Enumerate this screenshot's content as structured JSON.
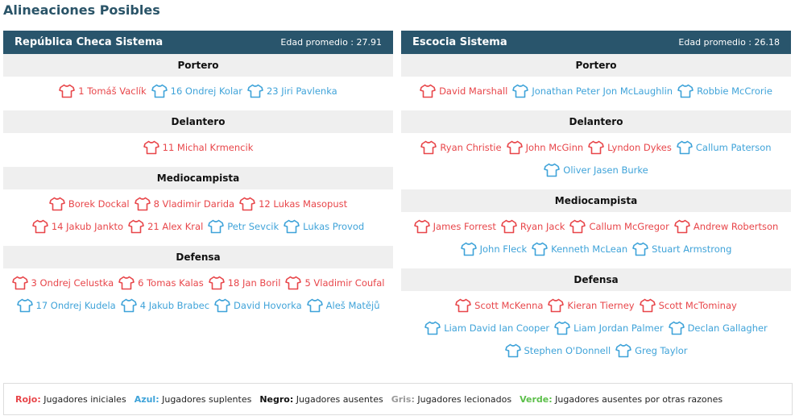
{
  "page_title": "Alineaciones Posibles",
  "colors": {
    "red": "#e8464a",
    "blue": "#3fa3d9",
    "header_bg": "#29556c",
    "section_bg": "#efefef"
  },
  "shirt_icon": "shirt-icon",
  "teams": [
    {
      "name": "República Checa Sistema",
      "age": "Edad promedio : 27.91",
      "sections": [
        {
          "title": "Portero",
          "rows": [
            [
              {
                "label": "1 Tomáš Vaclík",
                "color": "red"
              },
              {
                "label": "16 Ondrej Kolar",
                "color": "blue"
              },
              {
                "label": "23 Jiri Pavlenka",
                "color": "blue"
              }
            ]
          ]
        },
        {
          "title": "Delantero",
          "rows": [
            [
              {
                "label": "11 Michal Krmencik",
                "color": "red"
              }
            ]
          ]
        },
        {
          "title": "Mediocampista",
          "rows": [
            [
              {
                "label": "Borek Dockal",
                "color": "red"
              },
              {
                "label": "8 Vladimir Darida",
                "color": "red"
              },
              {
                "label": "12 Lukas Masopust",
                "color": "red"
              }
            ],
            [
              {
                "label": "14 Jakub Jankto",
                "color": "red"
              },
              {
                "label": "21 Alex Kral",
                "color": "red"
              },
              {
                "label": "Petr Sevcik",
                "color": "blue"
              },
              {
                "label": "Lukas Provod",
                "color": "blue"
              }
            ]
          ]
        },
        {
          "title": "Defensa",
          "rows": [
            [
              {
                "label": "3 Ondrej Celustka",
                "color": "red"
              },
              {
                "label": "6 Tomas Kalas",
                "color": "red"
              },
              {
                "label": "18 Jan Boril",
                "color": "red"
              },
              {
                "label": "5 Vladimir Coufal",
                "color": "red"
              }
            ],
            [
              {
                "label": "17 Ondrej Kudela",
                "color": "blue"
              },
              {
                "label": "4 Jakub Brabec",
                "color": "blue"
              },
              {
                "label": "David Hovorka",
                "color": "blue"
              },
              {
                "label": "Aleš Matějů",
                "color": "blue"
              }
            ]
          ]
        }
      ]
    },
    {
      "name": "Escocia Sistema",
      "age": "Edad promedio : 26.18",
      "sections": [
        {
          "title": "Portero",
          "rows": [
            [
              {
                "label": "David Marshall",
                "color": "red"
              },
              {
                "label": "Jonathan Peter Jon McLaughlin",
                "color": "blue"
              },
              {
                "label": "Robbie McCrorie",
                "color": "blue"
              }
            ]
          ]
        },
        {
          "title": "Delantero",
          "rows": [
            [
              {
                "label": "Ryan Christie",
                "color": "red"
              },
              {
                "label": "John McGinn",
                "color": "red"
              },
              {
                "label": "Lyndon Dykes",
                "color": "red"
              },
              {
                "label": "Callum Paterson",
                "color": "blue"
              }
            ],
            [
              {
                "label": "Oliver Jasen Burke",
                "color": "blue"
              }
            ]
          ]
        },
        {
          "title": "Mediocampista",
          "rows": [
            [
              {
                "label": "James Forrest",
                "color": "red"
              },
              {
                "label": "Ryan Jack",
                "color": "red"
              },
              {
                "label": "Callum McGregor",
                "color": "red"
              },
              {
                "label": "Andrew Robertson",
                "color": "red"
              }
            ],
            [
              {
                "label": "John Fleck",
                "color": "blue"
              },
              {
                "label": "Kenneth McLean",
                "color": "blue"
              },
              {
                "label": "Stuart Armstrong",
                "color": "blue"
              }
            ]
          ]
        },
        {
          "title": "Defensa",
          "rows": [
            [
              {
                "label": "Scott McKenna",
                "color": "red"
              },
              {
                "label": "Kieran Tierney",
                "color": "red"
              },
              {
                "label": "Scott McTominay",
                "color": "red"
              }
            ],
            [
              {
                "label": "Liam David Ian Cooper",
                "color": "blue"
              },
              {
                "label": "Liam Jordan Palmer",
                "color": "blue"
              },
              {
                "label": "Declan Gallagher",
                "color": "blue"
              }
            ],
            [
              {
                "label": "Stephen O'Donnell",
                "color": "blue"
              },
              {
                "label": "Greg Taylor",
                "color": "blue"
              }
            ]
          ]
        }
      ]
    }
  ],
  "legend": [
    {
      "key": "Rojo:",
      "text": "Jugadores iniciales",
      "color": "#e8464a"
    },
    {
      "key": "Azul:",
      "text": "Jugadores suplentes",
      "color": "#3fa3d9"
    },
    {
      "key": "Negro:",
      "text": "Jugadores ausentes",
      "color": "#111111"
    },
    {
      "key": "Gris:",
      "text": "Jugadores lecionados",
      "color": "#9a9a9a"
    },
    {
      "key": "Verde:",
      "text": "Jugadores ausentes por otras razones",
      "color": "#5cbf4a"
    }
  ]
}
